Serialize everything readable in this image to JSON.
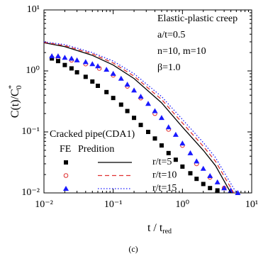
{
  "chart_data": {
    "type": "line",
    "log_x": true,
    "log_y": true,
    "annotations": [
      "Elastic-plastic creep",
      "a/t=0.5",
      "n=10, m=10",
      "β=1.0"
    ],
    "x_label": "t / t",
    "x_label_sub": "red",
    "y_label": "C(t)/C",
    "y_label_sup": "*",
    "y_label_sub": "0",
    "caption": "(c)",
    "legend_title": "Cracked pipe(CDA1)",
    "legend_headers": [
      "FE",
      "Predition"
    ],
    "xlim": [
      0.01,
      10
    ],
    "xticks": [
      {
        "value": 0.01,
        "label": "10⁻²"
      },
      {
        "value": 0.1,
        "label": "10⁻¹"
      },
      {
        "value": 1,
        "label": "10⁰"
      },
      {
        "value": 10,
        "label": "10¹"
      }
    ],
    "ylim": [
      0.01,
      10
    ],
    "yticks": [
      {
        "value": 0.01,
        "label": "10⁻²"
      },
      {
        "value": 0.1,
        "label": "10⁻¹"
      },
      {
        "value": 1,
        "label": "10⁰"
      },
      {
        "value": 10,
        "label": "10¹"
      }
    ],
    "series": [
      {
        "name": "r/t=5",
        "color": "#000000",
        "marker": "square",
        "dash": "solid",
        "fe_x": [
          0.013,
          0.016,
          0.02,
          0.025,
          0.03,
          0.04,
          0.05,
          0.06,
          0.08,
          0.1,
          0.13,
          0.16,
          0.2,
          0.25,
          0.32,
          0.4,
          0.5,
          0.63,
          0.8,
          1.0,
          1.3,
          1.6,
          2.0,
          2.5,
          3.2
        ],
        "fe_values": [
          1.6,
          1.45,
          1.25,
          1.1,
          0.95,
          0.8,
          0.67,
          0.57,
          0.45,
          0.36,
          0.28,
          0.22,
          0.17,
          0.13,
          0.1,
          0.078,
          0.06,
          0.045,
          0.035,
          0.027,
          0.021,
          0.017,
          0.014,
          0.012,
          0.011
        ],
        "pred_x": [
          0.01,
          0.02,
          0.05,
          0.1,
          0.2,
          0.5,
          1,
          2,
          3,
          5
        ],
        "pred_values": [
          2.9,
          2.5,
          1.8,
          1.25,
          0.75,
          0.3,
          0.12,
          0.05,
          0.028,
          0.01
        ]
      },
      {
        "name": "r/t=10",
        "color": "#e03030",
        "marker": "circle",
        "dash": "dashed",
        "fe_x": [
          0.016,
          0.025,
          0.04,
          0.063,
          0.1,
          0.16,
          0.25,
          0.4,
          0.63,
          1.0,
          1.6,
          2.5,
          4.0
        ],
        "fe_values": [
          1.65,
          1.5,
          1.3,
          1.1,
          0.85,
          0.56,
          0.36,
          0.2,
          0.11,
          0.06,
          0.03,
          0.018,
          0.012
        ],
        "pred_x": [
          0.01,
          0.02,
          0.05,
          0.1,
          0.2,
          0.5,
          1,
          2,
          3,
          5.5
        ],
        "pred_values": [
          2.95,
          2.6,
          1.9,
          1.35,
          0.82,
          0.34,
          0.14,
          0.058,
          0.033,
          0.01
        ]
      },
      {
        "name": "r/t=15",
        "color": "#1a1aff",
        "marker": "triangle",
        "dash": "dotted",
        "fe_x": [
          0.013,
          0.016,
          0.02,
          0.025,
          0.03,
          0.04,
          0.05,
          0.06,
          0.08,
          0.1,
          0.13,
          0.16,
          0.2,
          0.25,
          0.32,
          0.4,
          0.5,
          0.63,
          0.8,
          1.0,
          1.3,
          1.6,
          2.0,
          2.5,
          3.2,
          4.0,
          5.0,
          6.3
        ],
        "fe_values": [
          1.75,
          1.75,
          1.65,
          1.6,
          1.5,
          1.4,
          1.3,
          1.2,
          1.05,
          0.9,
          0.75,
          0.6,
          0.48,
          0.38,
          0.29,
          0.22,
          0.17,
          0.12,
          0.09,
          0.065,
          0.045,
          0.033,
          0.025,
          0.019,
          0.015,
          0.012,
          0.011,
          0.01
        ],
        "pred_x": [
          0.01,
          0.02,
          0.05,
          0.1,
          0.2,
          0.5,
          1,
          2,
          3,
          6
        ],
        "pred_values": [
          3.0,
          2.7,
          2.0,
          1.45,
          0.9,
          0.38,
          0.16,
          0.067,
          0.038,
          0.01
        ]
      }
    ]
  }
}
